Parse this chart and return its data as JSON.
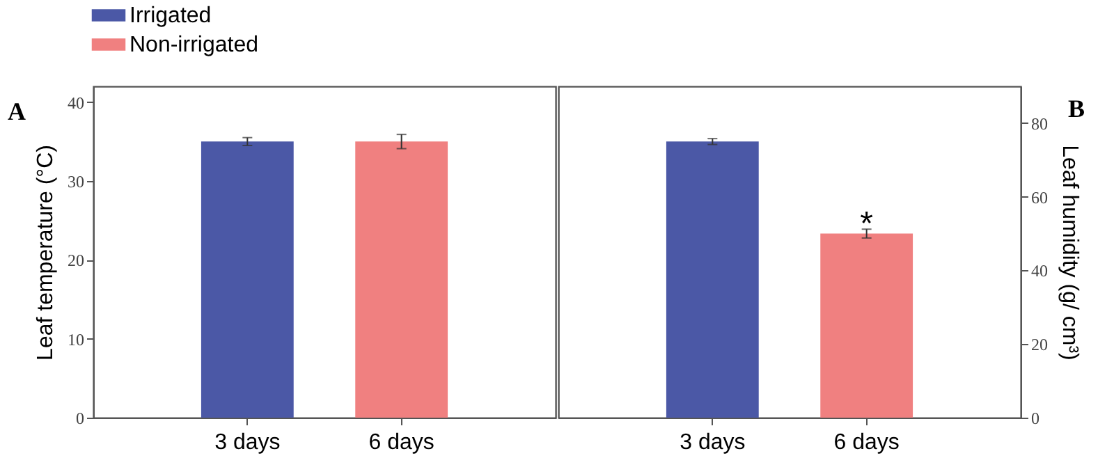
{
  "chart_data": [
    {
      "type": "bar",
      "categories": [
        "3 days",
        "6 days"
      ],
      "ylabel": "Leaf temperature (°C)",
      "ylim": [
        0,
        42
      ],
      "yticks": [
        0,
        10,
        20,
        30,
        40
      ],
      "legend": "top left",
      "annotations": [
        "A"
      ],
      "series": [
        {
          "name": "Irrigated",
          "color": "#4b58a6",
          "values": [
            35,
            null
          ],
          "errors": [
            0.5,
            null
          ]
        },
        {
          "name": "Non-irrigated",
          "color": "#f08080",
          "values": [
            null,
            35
          ],
          "errors": [
            null,
            0.9
          ]
        }
      ]
    },
    {
      "type": "bar",
      "categories": [
        "3 days",
        "6 days"
      ],
      "y2label": "Leaf humidity (g/ cm³)",
      "y2lim": [
        0,
        90
      ],
      "y2ticks": [
        0,
        20,
        40,
        60,
        80
      ],
      "annotations": [
        "B",
        "*"
      ],
      "series": [
        {
          "name": "Irrigated",
          "color": "#4b58a6",
          "axis": "y2",
          "values": [
            75,
            null
          ],
          "errors": [
            0.8,
            null
          ]
        },
        {
          "name": "Non-irrigated",
          "color": "#f08080",
          "axis": "y2",
          "values": [
            null,
            50
          ],
          "errors": [
            null,
            1.2
          ]
        }
      ]
    }
  ]
}
